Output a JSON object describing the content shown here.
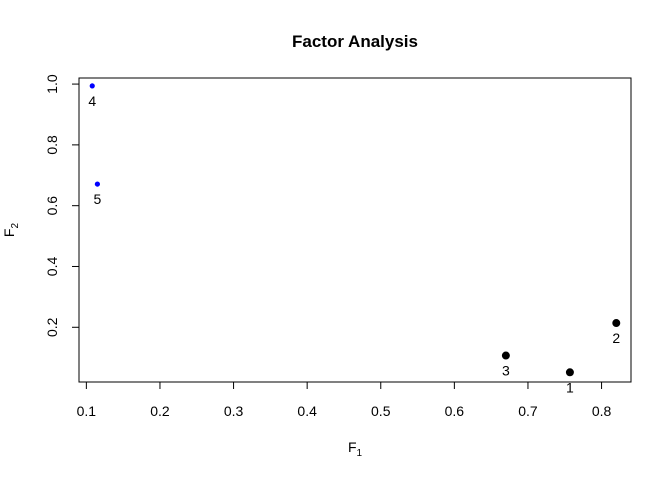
{
  "chart_data": {
    "type": "scatter",
    "title": "Factor Analysis",
    "xlabel": {
      "base": "F",
      "sub": "1"
    },
    "ylabel": {
      "base": "F",
      "sub": "2"
    },
    "xlim": [
      0.09,
      0.84
    ],
    "ylim": [
      0.02,
      1.02
    ],
    "xticks": [
      0.1,
      0.2,
      0.3,
      0.4,
      0.5,
      0.6,
      0.7,
      0.8
    ],
    "xtick_labels": [
      "0.1",
      "0.2",
      "0.3",
      "0.4",
      "0.5",
      "0.6",
      "0.7",
      "0.8"
    ],
    "yticks": [
      0.2,
      0.4,
      0.6,
      0.8,
      1.0
    ],
    "ytick_labels": [
      "0.2",
      "0.4",
      "0.6",
      "0.8",
      "1.0"
    ],
    "grid": false,
    "points": [
      {
        "label": "1",
        "x": 0.757,
        "y": 0.052,
        "color": "#000000",
        "marker": "large"
      },
      {
        "label": "2",
        "x": 0.82,
        "y": 0.214,
        "color": "#000000",
        "marker": "large"
      },
      {
        "label": "3",
        "x": 0.67,
        "y": 0.107,
        "color": "#000000",
        "marker": "large"
      },
      {
        "label": "4",
        "x": 0.108,
        "y": 0.994,
        "color": "#0000ff",
        "marker": "small"
      },
      {
        "label": "5",
        "x": 0.115,
        "y": 0.671,
        "color": "#0000ff",
        "marker": "small"
      }
    ]
  }
}
